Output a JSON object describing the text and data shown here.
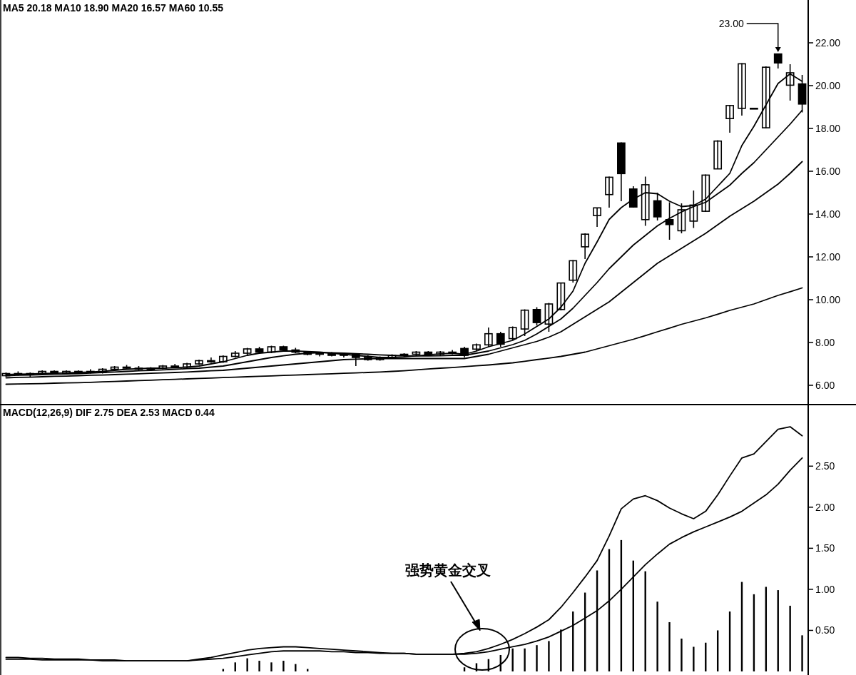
{
  "chart_data": [
    {
      "type": "candlestick",
      "title": "MA5 20.18 MA10 18.90 MA20 16.57 MA60 10.55",
      "categories": [
        null,
        null,
        null,
        null,
        null,
        null,
        null,
        null,
        null,
        null,
        null,
        null,
        null,
        null,
        null,
        null,
        null,
        null,
        null,
        null,
        null,
        null,
        null,
        null,
        null,
        null,
        null,
        null,
        null,
        null,
        null,
        null,
        null,
        null,
        null,
        null,
        null,
        null,
        null,
        null,
        null,
        null,
        null,
        null,
        null,
        null,
        null,
        null,
        null,
        null,
        null,
        null,
        null,
        null,
        null,
        null,
        null,
        null,
        null,
        null,
        null,
        null,
        null,
        null,
        null,
        null,
        null
      ],
      "ohlc": [
        [
          6.45,
          6.6,
          6.4,
          6.55
        ],
        [
          6.55,
          6.65,
          6.45,
          6.5
        ],
        [
          6.5,
          6.6,
          6.4,
          6.55
        ],
        [
          6.55,
          6.7,
          6.5,
          6.65
        ],
        [
          6.65,
          6.7,
          6.5,
          6.55
        ],
        [
          6.55,
          6.7,
          6.5,
          6.65
        ],
        [
          6.6,
          6.7,
          6.55,
          6.65
        ],
        [
          6.65,
          6.75,
          6.55,
          6.6
        ],
        [
          6.6,
          6.8,
          6.55,
          6.75
        ],
        [
          6.75,
          6.9,
          6.7,
          6.85
        ],
        [
          6.85,
          6.95,
          6.75,
          6.8
        ],
        [
          6.8,
          6.9,
          6.7,
          6.75
        ],
        [
          6.75,
          6.85,
          6.7,
          6.8
        ],
        [
          6.8,
          6.95,
          6.75,
          6.9
        ],
        [
          6.9,
          7.0,
          6.8,
          6.85
        ],
        [
          6.85,
          7.05,
          6.8,
          7.0
        ],
        [
          7.0,
          7.2,
          6.95,
          7.15
        ],
        [
          7.15,
          7.3,
          7.05,
          7.1
        ],
        [
          7.1,
          7.4,
          7.05,
          7.35
        ],
        [
          7.35,
          7.6,
          7.3,
          7.5
        ],
        [
          7.5,
          7.75,
          7.4,
          7.7
        ],
        [
          7.7,
          7.8,
          7.5,
          7.55
        ],
        [
          7.55,
          7.85,
          7.5,
          7.8
        ],
        [
          7.8,
          7.85,
          7.6,
          7.65
        ],
        [
          7.65,
          7.75,
          7.5,
          7.55
        ],
        [
          7.55,
          7.6,
          7.4,
          7.45
        ],
        [
          7.45,
          7.55,
          7.35,
          7.5
        ],
        [
          7.5,
          7.55,
          7.35,
          7.4
        ],
        [
          7.4,
          7.5,
          7.3,
          7.45
        ],
        [
          7.45,
          7.5,
          6.9,
          7.3
        ],
        [
          7.3,
          7.4,
          7.15,
          7.2
        ],
        [
          7.2,
          7.35,
          7.15,
          7.3
        ],
        [
          7.3,
          7.45,
          7.25,
          7.4
        ],
        [
          7.4,
          7.5,
          7.3,
          7.45
        ],
        [
          7.45,
          7.6,
          7.4,
          7.55
        ],
        [
          7.55,
          7.6,
          7.4,
          7.45
        ],
        [
          7.45,
          7.6,
          7.4,
          7.55
        ],
        [
          7.55,
          7.65,
          7.45,
          7.5
        ],
        [
          7.72,
          7.8,
          7.3,
          7.4
        ],
        [
          7.69,
          7.95,
          7.6,
          7.89
        ],
        [
          7.89,
          8.7,
          7.8,
          8.41
        ],
        [
          8.41,
          8.5,
          7.8,
          7.92
        ],
        [
          8.18,
          8.75,
          8.1,
          8.7
        ],
        [
          8.63,
          9.55,
          8.3,
          9.51
        ],
        [
          9.54,
          9.65,
          8.8,
          8.93
        ],
        [
          8.86,
          9.85,
          8.5,
          9.8
        ],
        [
          9.54,
          10.8,
          9.5,
          10.78
        ],
        [
          10.91,
          11.85,
          10.8,
          11.82
        ],
        [
          12.47,
          13.1,
          11.9,
          13.06
        ],
        [
          13.93,
          14.3,
          13.4,
          14.29
        ],
        [
          14.91,
          15.75,
          14.3,
          15.72
        ],
        [
          17.32,
          17.35,
          14.6,
          15.89
        ],
        [
          15.17,
          15.3,
          14.3,
          14.33
        ],
        [
          13.74,
          15.75,
          13.45,
          15.37
        ],
        [
          14.62,
          15.0,
          13.7,
          13.87
        ],
        [
          13.74,
          14.55,
          12.8,
          13.51
        ],
        [
          13.22,
          14.5,
          13.1,
          14.2
        ],
        [
          13.67,
          15.1,
          13.35,
          14.42
        ],
        [
          14.13,
          15.85,
          14.1,
          15.82
        ],
        [
          16.11,
          17.45,
          16.1,
          17.41
        ],
        [
          18.46,
          19.1,
          17.8,
          19.07
        ],
        [
          18.94,
          21.05,
          18.6,
          21.02
        ],
        [
          18.94,
          18.95,
          18.93,
          18.94
        ],
        [
          18.03,
          20.9,
          18.0,
          20.86
        ],
        [
          21.48,
          21.5,
          20.8,
          21.06
        ],
        [
          20.02,
          21.0,
          19.3,
          20.6
        ],
        [
          20.08,
          20.5,
          18.75,
          19.14
        ]
      ],
      "series": [
        {
          "type": "line",
          "color": "#000000",
          "values": [
            6.5,
            6.52,
            6.53,
            6.55,
            6.56,
            6.58,
            6.6,
            6.62,
            6.65,
            6.7,
            6.75,
            6.78,
            6.8,
            6.8,
            6.82,
            6.85,
            6.9,
            7.0,
            7.1,
            7.25,
            7.4,
            7.5,
            7.55,
            7.6,
            7.6,
            7.58,
            7.55,
            7.5,
            7.45,
            7.4,
            7.35,
            7.3,
            7.3,
            7.33,
            7.38,
            7.42,
            7.47,
            7.5,
            7.45,
            7.6,
            7.8,
            7.95,
            8.1,
            8.4,
            8.75,
            9.1,
            9.65,
            10.4,
            11.7,
            12.7,
            13.75,
            14.3,
            14.7,
            15.0,
            14.95,
            14.6,
            14.35,
            14.4,
            14.7,
            15.3,
            15.9,
            17.2,
            18.1,
            19.1,
            20.1,
            20.55,
            20.2
          ]
        },
        {
          "type": "line",
          "color": "#000000",
          "values": [
            6.45,
            6.47,
            6.48,
            6.5,
            6.52,
            6.53,
            6.55,
            6.57,
            6.6,
            6.62,
            6.65,
            6.68,
            6.7,
            6.72,
            6.75,
            6.78,
            6.8,
            6.85,
            6.9,
            7.0,
            7.1,
            7.2,
            7.3,
            7.38,
            7.45,
            7.5,
            7.52,
            7.52,
            7.5,
            7.48,
            7.45,
            7.42,
            7.4,
            7.38,
            7.37,
            7.37,
            7.38,
            7.4,
            7.4,
            7.5,
            7.6,
            7.75,
            7.9,
            8.1,
            8.4,
            8.75,
            9.1,
            9.6,
            10.2,
            10.8,
            11.45,
            12.0,
            12.55,
            13.0,
            13.45,
            13.8,
            14.1,
            14.35,
            14.55,
            14.95,
            15.35,
            15.9,
            16.4,
            17.0,
            17.6,
            18.2,
            18.85
          ]
        },
        {
          "type": "line",
          "color": "#000000",
          "values": [
            6.35,
            6.37,
            6.38,
            6.4,
            6.42,
            6.43,
            6.45,
            6.47,
            6.48,
            6.5,
            6.52,
            6.54,
            6.56,
            6.58,
            6.6,
            6.62,
            6.65,
            6.68,
            6.7,
            6.75,
            6.8,
            6.85,
            6.9,
            6.95,
            7.0,
            7.05,
            7.1,
            7.15,
            7.2,
            7.22,
            7.24,
            7.25,
            7.25,
            7.25,
            7.25,
            7.25,
            7.25,
            7.25,
            7.25,
            7.35,
            7.45,
            7.6,
            7.75,
            7.9,
            8.05,
            8.25,
            8.5,
            8.85,
            9.2,
            9.55,
            9.9,
            10.35,
            10.8,
            11.25,
            11.7,
            12.05,
            12.4,
            12.75,
            13.1,
            13.5,
            13.9,
            14.25,
            14.6,
            15.0,
            15.4,
            15.9,
            16.45
          ]
        },
        {
          "type": "line",
          "color": "#000000",
          "values": [
            6.05,
            6.06,
            6.07,
            6.08,
            6.1,
            6.11,
            6.12,
            6.14,
            6.16,
            6.18,
            6.2,
            6.22,
            6.24,
            6.26,
            6.28,
            6.3,
            6.32,
            6.34,
            6.36,
            6.38,
            6.4,
            6.42,
            6.44,
            6.46,
            6.48,
            6.5,
            6.52,
            6.54,
            6.56,
            6.58,
            6.6,
            6.62,
            6.65,
            6.68,
            6.72,
            6.76,
            6.8,
            6.83,
            6.87,
            6.91,
            6.95,
            7.0,
            7.05,
            7.12,
            7.2,
            7.27,
            7.35,
            7.45,
            7.55,
            7.7,
            7.85,
            8.0,
            8.15,
            8.32,
            8.5,
            8.67,
            8.85,
            9.0,
            9.15,
            9.32,
            9.5,
            9.65,
            9.8,
            10.0,
            10.2,
            10.37,
            10.55
          ]
        }
      ],
      "ylim": [
        5.1,
        24.0
      ],
      "yticks": [
        {
          "value": 6,
          "label": "6.00"
        },
        {
          "value": 8,
          "label": "8.00"
        },
        {
          "value": 10,
          "label": "10.00"
        },
        {
          "value": 12,
          "label": "12.00"
        },
        {
          "value": 14,
          "label": "14.00"
        },
        {
          "value": 16,
          "label": "16.00"
        },
        {
          "value": 18,
          "label": "18.00"
        },
        {
          "value": 20,
          "label": "20.00"
        },
        {
          "value": 22,
          "label": "22.00"
        }
      ],
      "tick_labels": "y",
      "annotations": [
        "23.00"
      ]
    },
    {
      "type": "bar",
      "title": "MACD(12,26,9) DIF 2.75 DEA 2.53 MACD 0.44",
      "categories": [
        null,
        null,
        null,
        null,
        null,
        null,
        null,
        null,
        null,
        null,
        null,
        null,
        null,
        null,
        null,
        null,
        null,
        null,
        null,
        null,
        null,
        null,
        null,
        null,
        null,
        null,
        null,
        null,
        null,
        null,
        null,
        null,
        null,
        null,
        null,
        null,
        null,
        null,
        null,
        null,
        null,
        null,
        null,
        null,
        null,
        null,
        null,
        null,
        null,
        null,
        null,
        null,
        null,
        null,
        null,
        null,
        null,
        null,
        null,
        null,
        null,
        null,
        null,
        null,
        null,
        null,
        null
      ],
      "series": [
        {
          "type": "bar",
          "color": "#000000",
          "values": [
            null,
            null,
            null,
            null,
            null,
            null,
            null,
            null,
            null,
            null,
            null,
            null,
            null,
            null,
            null,
            null,
            null,
            null,
            0.03,
            0.11,
            0.16,
            0.13,
            0.11,
            0.13,
            0.09,
            0.03,
            null,
            null,
            null,
            null,
            null,
            null,
            null,
            null,
            null,
            null,
            null,
            null,
            0.05,
            0.1,
            0.15,
            0.2,
            0.28,
            0.28,
            0.32,
            0.37,
            0.51,
            0.73,
            0.96,
            1.23,
            1.49,
            1.6,
            1.35,
            1.22,
            0.85,
            0.6,
            0.4,
            0.3,
            0.35,
            0.5,
            0.73,
            1.09,
            0.94,
            1.03,
            0.99,
            0.8,
            0.44
          ]
        },
        {
          "type": "line",
          "color": "#000000",
          "values": [
            0.17,
            0.17,
            0.16,
            0.16,
            0.15,
            0.15,
            0.15,
            0.14,
            0.14,
            0.14,
            0.13,
            0.13,
            0.13,
            0.13,
            0.13,
            0.13,
            0.15,
            0.17,
            0.2,
            0.23,
            0.26,
            0.28,
            0.29,
            0.3,
            0.3,
            0.29,
            0.28,
            0.27,
            0.26,
            0.25,
            0.24,
            0.23,
            0.22,
            0.22,
            0.21,
            0.21,
            0.21,
            0.21,
            0.22,
            0.24,
            0.28,
            0.33,
            0.39,
            0.46,
            0.54,
            0.63,
            0.78,
            0.96,
            1.15,
            1.35,
            1.65,
            1.98,
            2.1,
            2.14,
            2.08,
            1.99,
            1.92,
            1.86,
            1.95,
            2.15,
            2.38,
            2.6,
            2.65,
            2.8,
            2.95,
            2.98,
            2.87
          ]
        },
        {
          "type": "line",
          "color": "#000000",
          "values": [
            0.15,
            0.15,
            0.15,
            0.14,
            0.14,
            0.14,
            0.14,
            0.14,
            0.13,
            0.13,
            0.13,
            0.13,
            0.13,
            0.13,
            0.13,
            0.13,
            0.14,
            0.15,
            0.16,
            0.18,
            0.2,
            0.22,
            0.24,
            0.25,
            0.25,
            0.25,
            0.25,
            0.24,
            0.24,
            0.23,
            0.23,
            0.22,
            0.22,
            0.22,
            0.21,
            0.21,
            0.21,
            0.21,
            0.21,
            0.22,
            0.24,
            0.27,
            0.3,
            0.33,
            0.37,
            0.42,
            0.49,
            0.56,
            0.65,
            0.74,
            0.86,
            1.0,
            1.15,
            1.3,
            1.43,
            1.55,
            1.63,
            1.7,
            1.76,
            1.82,
            1.88,
            1.95,
            2.05,
            2.15,
            2.28,
            2.45,
            2.6
          ]
        }
      ],
      "ylim": [
        0,
        3.25
      ],
      "yticks": [
        {
          "value": 0.5,
          "label": "0.50"
        },
        {
          "value": 1,
          "label": "1.00"
        },
        {
          "value": 1.5,
          "label": "1.50"
        },
        {
          "value": 2,
          "label": "2.00"
        },
        {
          "value": 2.5,
          "label": "2.50"
        }
      ],
      "tick_labels": "y",
      "annotations": [
        "强势黄金交叉"
      ]
    }
  ]
}
